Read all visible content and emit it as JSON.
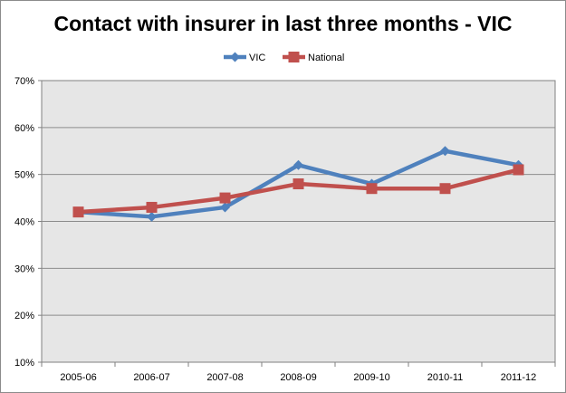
{
  "chart_data": {
    "type": "line",
    "title": "Contact with insurer in last three months - VIC",
    "xlabel": "",
    "ylabel": "",
    "categories": [
      "2005-06",
      "2006-07",
      "2007-08",
      "2008-09",
      "2009-10",
      "2010-11",
      "2011-12"
    ],
    "series": [
      {
        "name": "VIC",
        "values": [
          42,
          41,
          43,
          52,
          48,
          55,
          52
        ],
        "color": "#4f81bd",
        "marker": "diamond"
      },
      {
        "name": "National",
        "values": [
          42,
          43,
          45,
          48,
          47,
          47,
          51
        ],
        "color": "#c0504d",
        "marker": "square"
      }
    ],
    "ylim": [
      10,
      70
    ],
    "yticks": [
      "10%",
      "20%",
      "30%",
      "40%",
      "50%",
      "60%",
      "70%"
    ],
    "grid": true,
    "plot_background": "#e6e6e6",
    "legend_position": "top"
  }
}
